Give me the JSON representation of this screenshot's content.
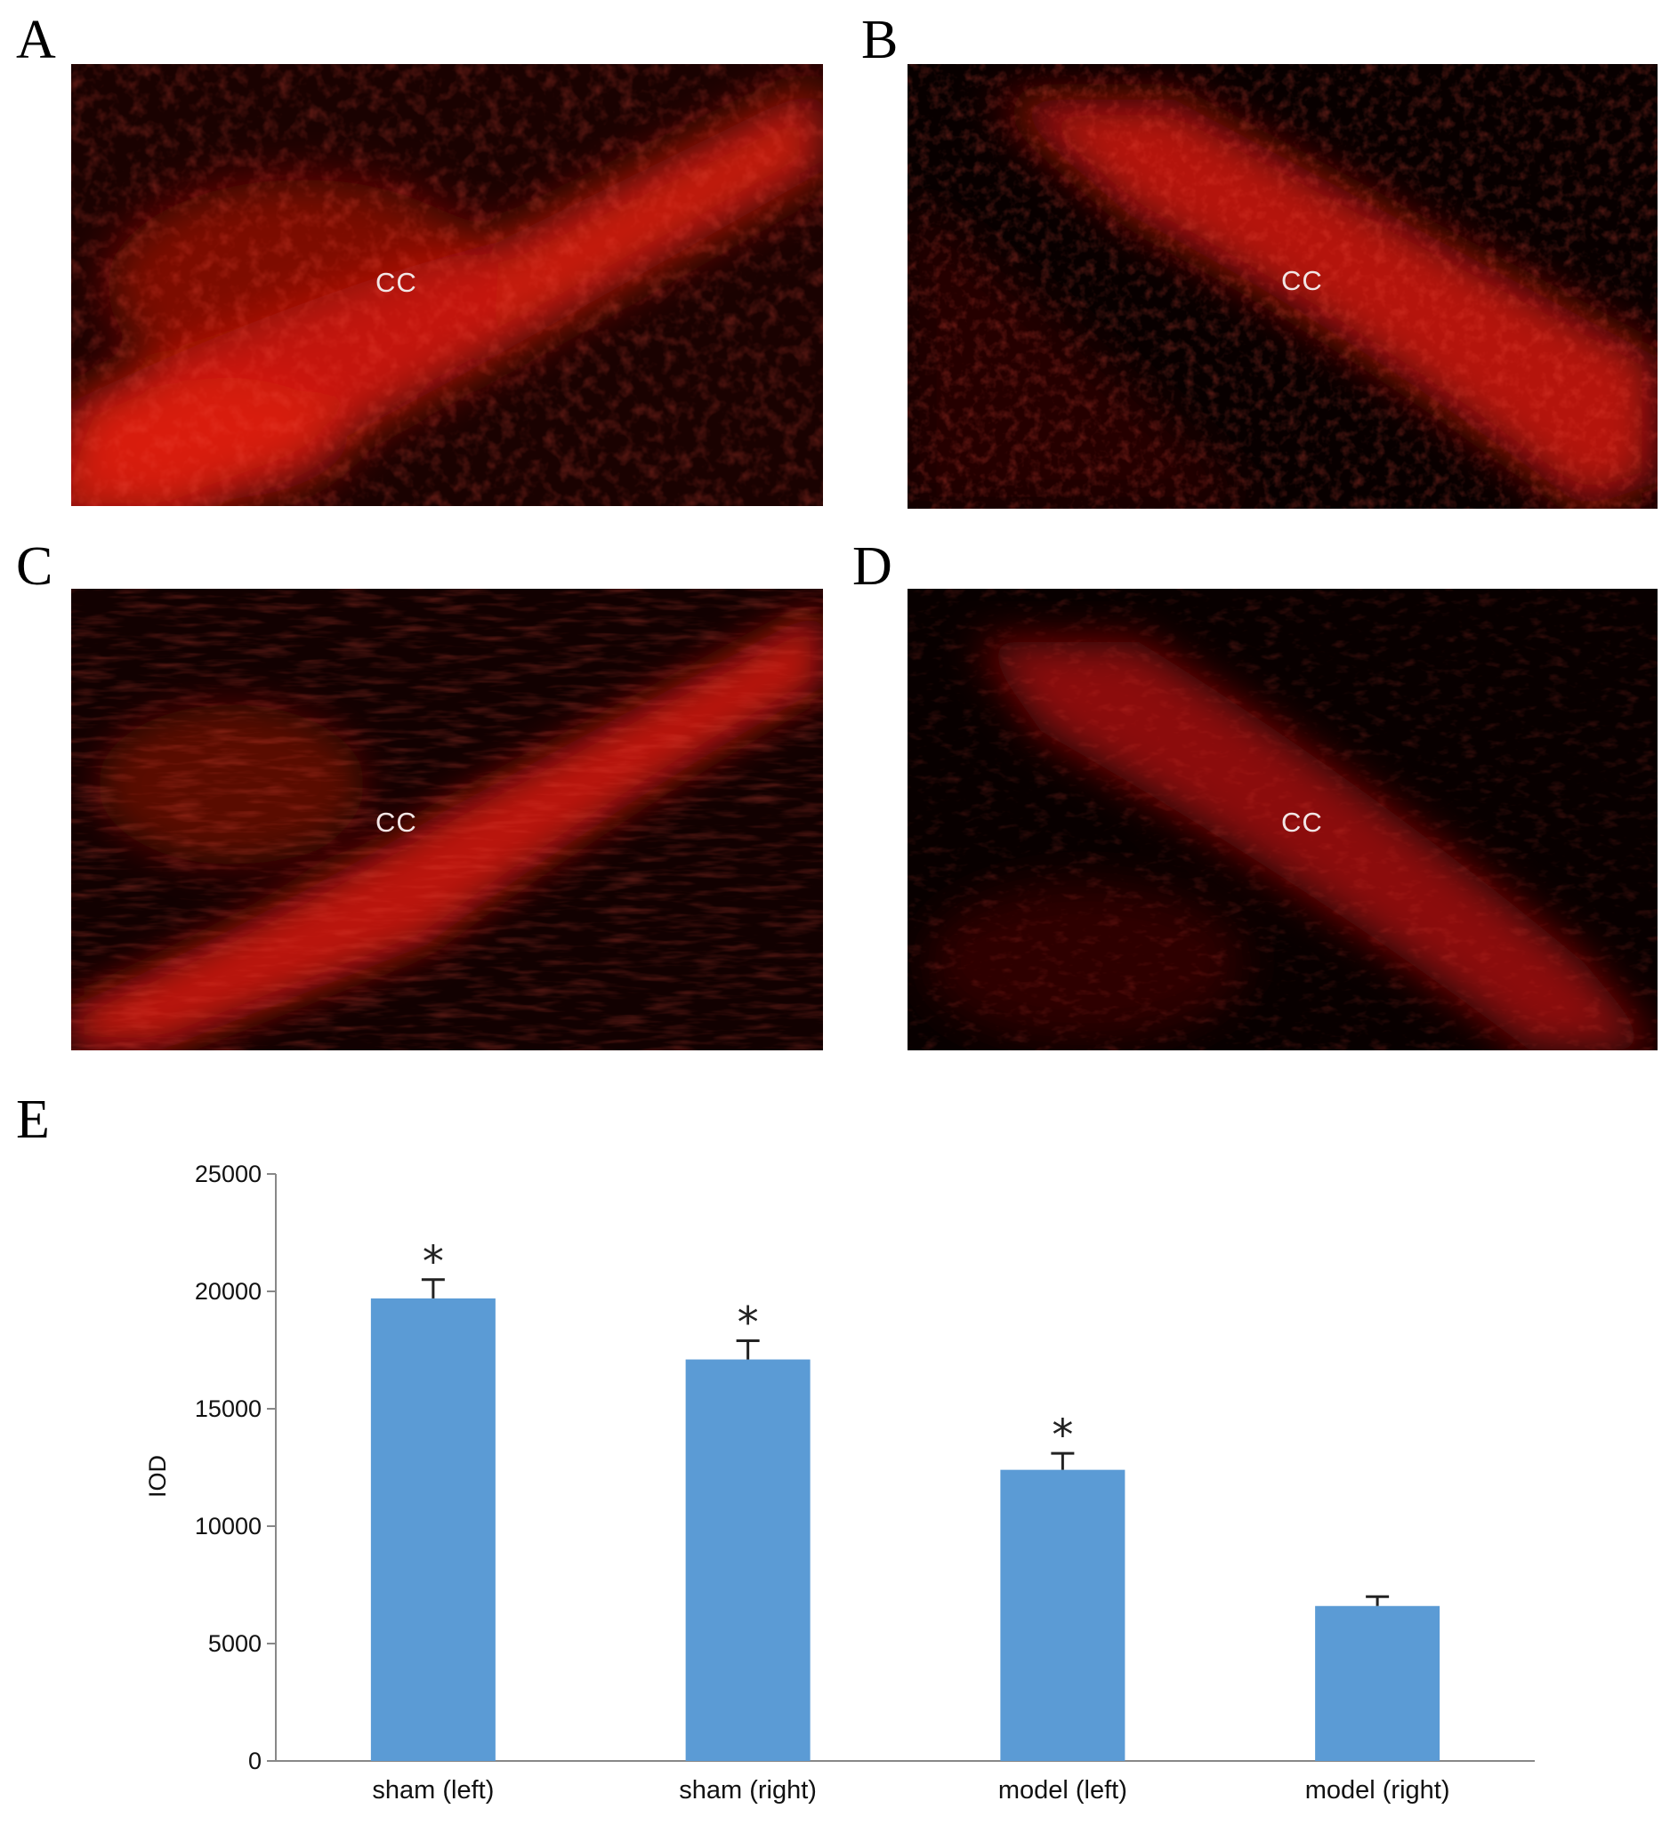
{
  "panels": [
    {
      "id": "A",
      "label": "A",
      "region_label": "CC",
      "tone": "#e81c10"
    },
    {
      "id": "B",
      "label": "B",
      "region_label": "CC",
      "tone": "#e01a10"
    },
    {
      "id": "C",
      "label": "C",
      "region_label": "CC",
      "tone": "#d81a10"
    },
    {
      "id": "D",
      "label": "D",
      "region_label": "CC",
      "tone": "#b81610"
    }
  ],
  "chart_panel_label": "E",
  "chart_data": {
    "type": "bar",
    "categories": [
      "sham (left)",
      "sham (right)",
      "model (left)",
      "model (right)"
    ],
    "series": [
      {
        "values": [
          19700,
          17100,
          12400,
          6600
        ],
        "error": [
          800,
          800,
          700,
          400
        ],
        "significance": [
          "*",
          "*",
          "*",
          ""
        ]
      }
    ],
    "title": "",
    "xlabel": "",
    "ylabel": "IOD",
    "ylim": [
      0,
      25000
    ],
    "yticks": [
      0,
      5000,
      10000,
      15000,
      20000,
      25000
    ],
    "grid": false,
    "bar_color": "#5b9bd5"
  }
}
